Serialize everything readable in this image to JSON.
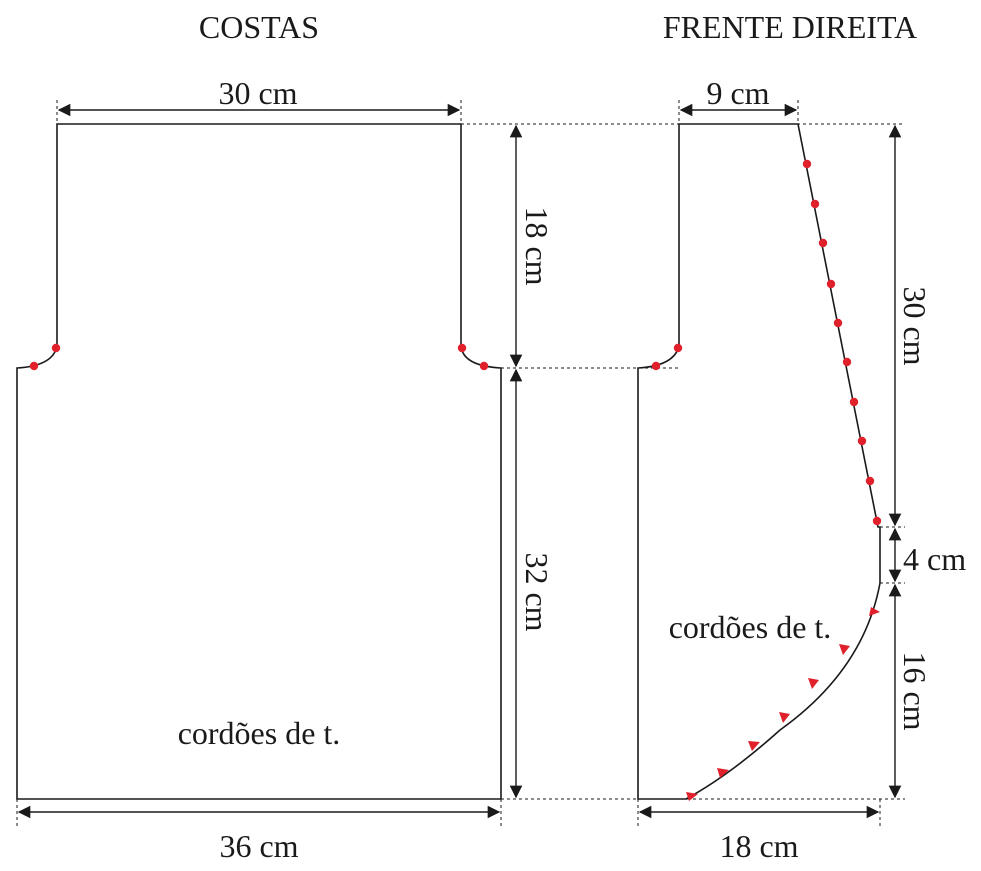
{
  "pieces": {
    "back": {
      "title": "COSTAS",
      "width_top": "30 cm",
      "height_armhole": "18 cm",
      "height_body": "32 cm",
      "width_bottom": "36 cm",
      "note": "cordões de t."
    },
    "front_right": {
      "title": "FRENTE DIREITA",
      "shoulder": "9 cm",
      "height_neck": "30 cm",
      "height_mid": "4 cm",
      "height_curve": "16 cm",
      "width_bottom": "18 cm",
      "note": "cordões de t."
    }
  },
  "colors": {
    "outline": "#1a1a1a",
    "marker": "#e0202a"
  }
}
